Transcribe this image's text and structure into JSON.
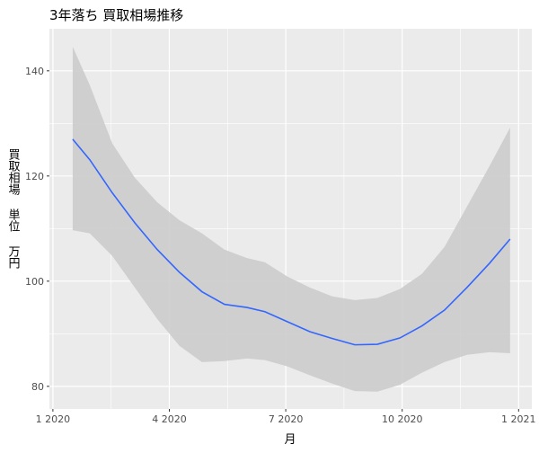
{
  "chart_data": {
    "type": "line",
    "title": "3年落ち 買取相場推移",
    "x_label": "月",
    "y_label": "買取相場 単位 万円",
    "x": [
      0.51,
      0.95,
      1.53,
      2.11,
      2.69,
      3.26,
      3.84,
      4.42,
      5.0,
      5.46,
      6.04,
      6.62,
      7.2,
      7.78,
      8.36,
      8.94,
      9.51,
      10.09,
      10.67,
      11.25,
      11.78
    ],
    "values": [
      127.0,
      123.1,
      116.8,
      111.1,
      106.0,
      101.7,
      98.0,
      95.6,
      95.0,
      94.2,
      92.3,
      90.4,
      89.1,
      87.9,
      88.0,
      89.2,
      91.5,
      94.5,
      98.8,
      103.4,
      108.0
    ],
    "upper": [
      144.6,
      137.3,
      126.2,
      119.7,
      115.0,
      111.6,
      109.1,
      106.0,
      104.4,
      103.6,
      100.9,
      98.8,
      97.1,
      96.4,
      96.8,
      98.5,
      101.4,
      106.5,
      114.2,
      121.9,
      129.2
    ],
    "lower": [
      109.7,
      109.1,
      104.8,
      98.8,
      92.8,
      87.7,
      84.6,
      84.8,
      85.3,
      85.0,
      83.8,
      82.1,
      80.5,
      79.1,
      79.0,
      80.3,
      82.6,
      84.6,
      86.0,
      86.5,
      86.3
    ],
    "color": "#3366ff",
    "band_color": "#cccccc",
    "xlim": [
      -0.09,
      12.34
    ],
    "xticks": [
      {
        "value": 0,
        "label": "1 2020"
      },
      {
        "value": 3,
        "label": "4 2020"
      },
      {
        "value": 6,
        "label": "7 2020"
      },
      {
        "value": 9,
        "label": "10 2020"
      },
      {
        "value": 12,
        "label": "1 2021"
      }
    ],
    "ylim": [
      75.7,
      148.0
    ],
    "yticks": [
      80,
      100,
      120,
      140
    ],
    "grid": true
  }
}
